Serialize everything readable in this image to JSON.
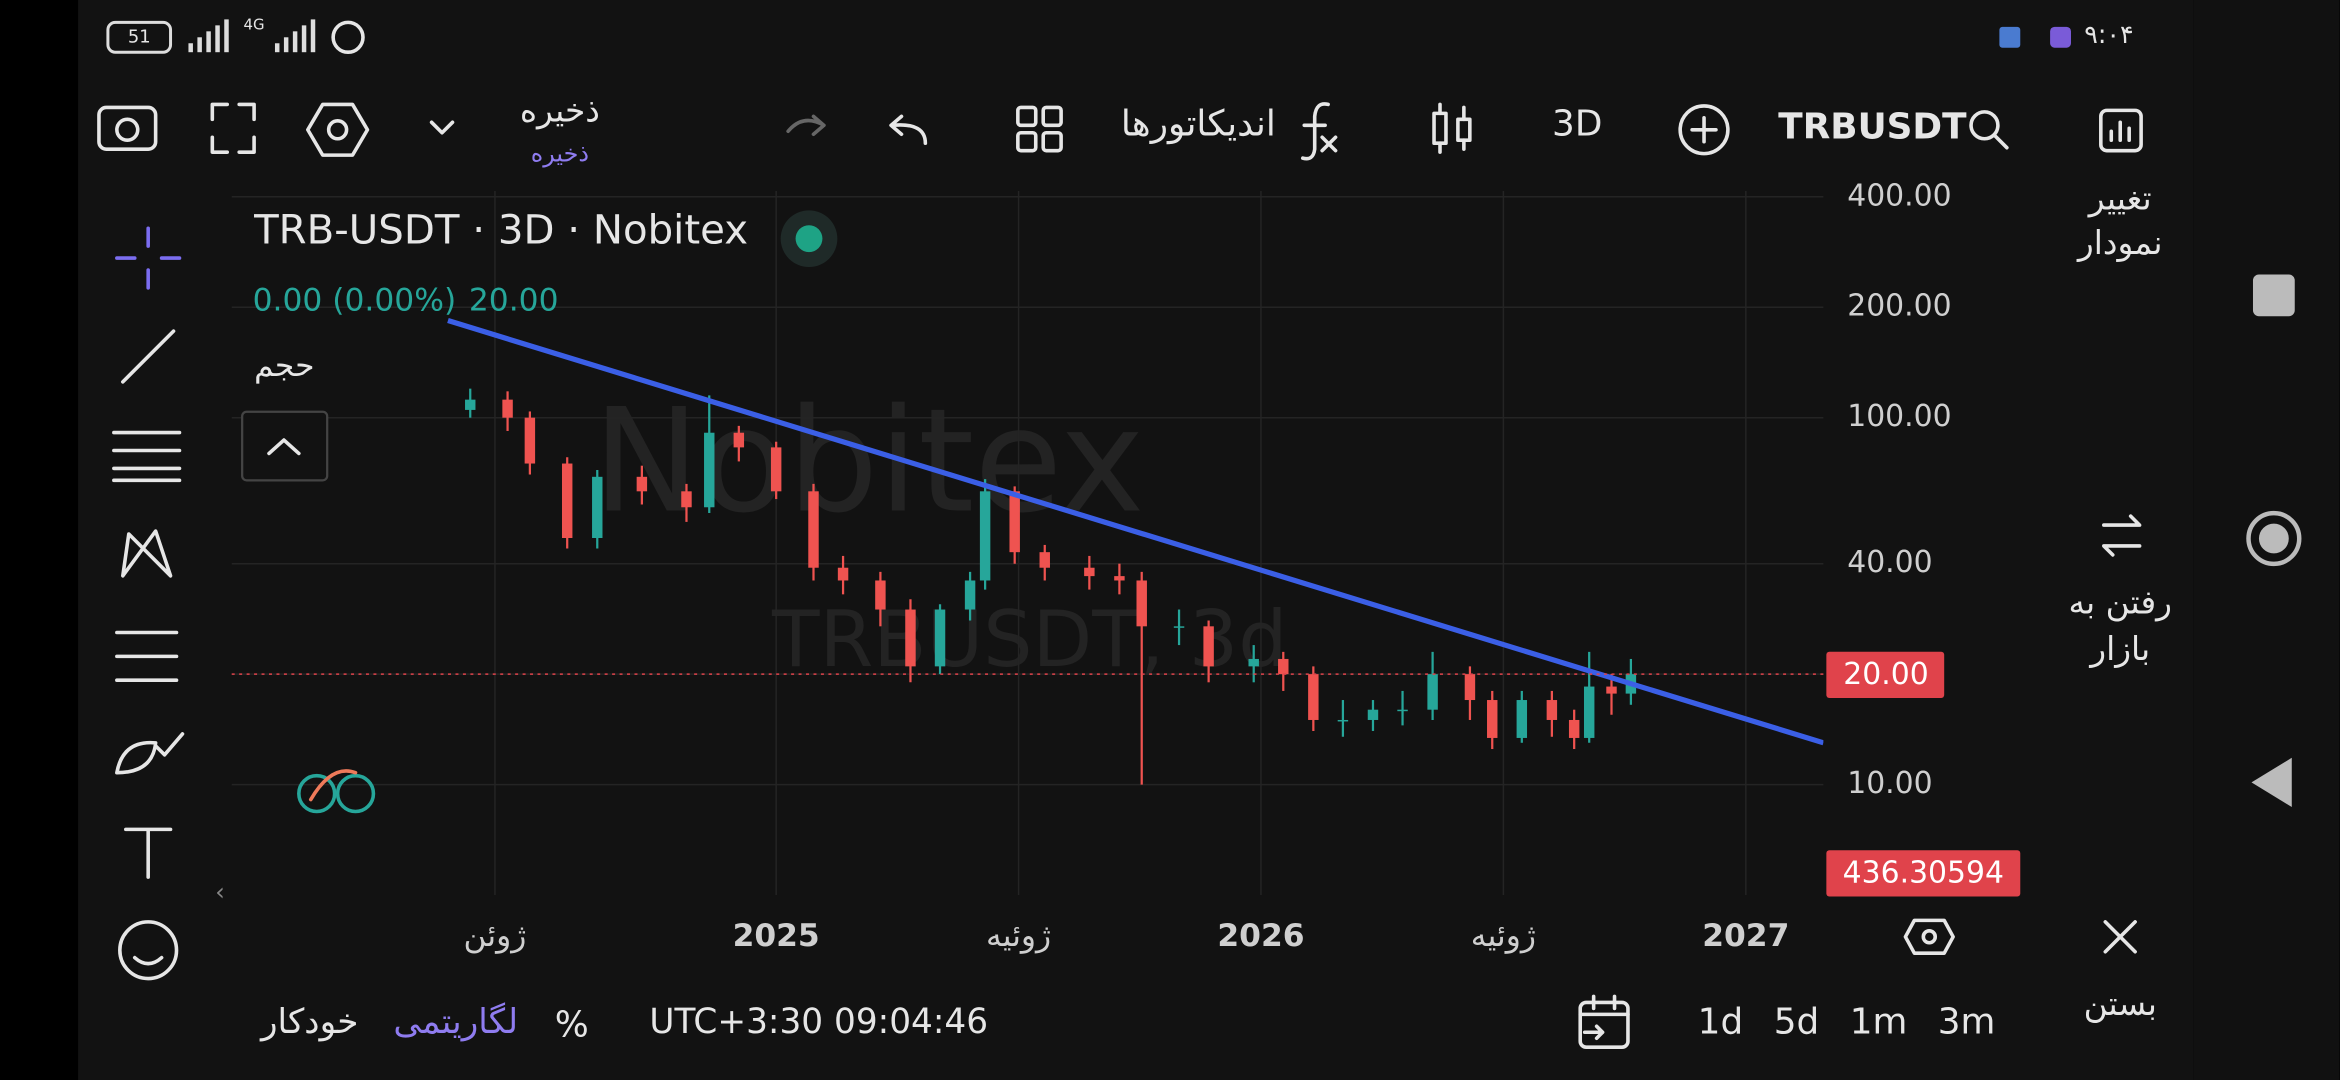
{
  "status_bar": {
    "battery": "51",
    "network": "4G",
    "time": "۹:۰۴"
  },
  "toolbar": {
    "save": "ذخیره",
    "save_sub": "ذخیره",
    "indicators": "اندیکاتورها",
    "interval": "3D",
    "symbol": "TRBUSDT"
  },
  "side_panel": {
    "change_chart": [
      "تغییر",
      "نمودار"
    ],
    "go_to_market": [
      "رفتن به",
      "بازار"
    ],
    "close": "بستن"
  },
  "legend": {
    "change": "0.00 (0.00%)",
    "price": "20.00",
    "volume": "حجم"
  },
  "watermark": {
    "brand": "Nobitex",
    "symbol": "TRBUSDT, 3d"
  },
  "volume_label": "436.30594",
  "bottom_bar": {
    "auto": "خودکار",
    "log": "لگاریتمی",
    "percent": "%",
    "clock": "UTC+3:30 09:04:46",
    "ranges": [
      "1d",
      "5d",
      "1m",
      "3m"
    ]
  },
  "chart_data": {
    "type": "candlestick",
    "title": "TRB-USDT · 3D · Nobitex",
    "log_scale": true,
    "grid": true,
    "up_color": "#26a69a",
    "down_color": "#ef5350",
    "xlim": [
      2023.877,
      2027.16
    ],
    "xticks": [
      {
        "value": 2024.42,
        "label": "ژوئن"
      },
      {
        "value": 2025,
        "label": "2025"
      },
      {
        "value": 2025.5,
        "label": "ژوئیه"
      },
      {
        "value": 2026,
        "label": "2026"
      },
      {
        "value": 2026.5,
        "label": "ژوئیه"
      },
      {
        "value": 2027,
        "label": "2027"
      }
    ],
    "ylim": [
      5,
      415
    ],
    "yticks": [
      {
        "value": 10,
        "label": "10.00"
      },
      {
        "value": 20,
        "label": "20.00"
      },
      {
        "value": 40,
        "label": "40.00"
      },
      {
        "value": 100,
        "label": "100.00"
      },
      {
        "value": 200,
        "label": "200.00"
      },
      {
        "value": 400,
        "label": "400.00"
      }
    ],
    "x": [
      2024.369,
      2024.446,
      2024.492,
      2024.569,
      2024.631,
      2024.723,
      2024.815,
      2024.862,
      2024.923,
      2025.0,
      2025.077,
      2025.138,
      2025.215,
      2025.277,
      2025.338,
      2025.4,
      2025.431,
      2025.492,
      2025.554,
      2025.646,
      2025.708,
      2025.754,
      2025.831,
      2025.892,
      2025.985,
      2026.046,
      2026.108,
      2026.169,
      2026.231,
      2026.292,
      2026.354,
      2026.431,
      2026.477,
      2026.538,
      2026.6,
      2026.646,
      2026.677,
      2026.723,
      2026.763
    ],
    "open": [
      105,
      112,
      100,
      75,
      47,
      69,
      63,
      57,
      91,
      83,
      63,
      39,
      36,
      30,
      21,
      30,
      36,
      63,
      43,
      39,
      37,
      36,
      27,
      27,
      21,
      22,
      20,
      15,
      15,
      16,
      16,
      20,
      17,
      13.4,
      17,
      15,
      13.4,
      18.5,
      17.7
    ],
    "high": [
      120,
      118,
      104,
      78,
      72,
      74,
      66,
      115,
      95,
      86,
      66,
      42,
      38,
      32,
      31,
      38,
      68,
      65,
      45,
      42,
      40,
      38,
      30,
      28,
      24,
      23,
      21,
      17,
      17,
      18,
      23,
      21,
      18,
      18,
      18,
      16,
      23,
      20,
      22
    ],
    "low": [
      100,
      92,
      70,
      44,
      44,
      58,
      52,
      55,
      76,
      60,
      36,
      33,
      27,
      19,
      20,
      28,
      34,
      40,
      36,
      34,
      33,
      10,
      24,
      19,
      19,
      18,
      14,
      13.5,
      14,
      14.5,
      15,
      15,
      12.5,
      13,
      13.5,
      12.5,
      13,
      15.5,
      16.5
    ],
    "close": [
      112,
      100,
      75,
      47,
      69,
      63,
      57,
      91,
      83,
      63,
      39,
      36,
      30,
      21,
      30,
      36,
      63,
      43,
      39,
      37,
      36,
      27,
      27,
      21,
      22,
      20,
      15,
      15,
      16,
      16,
      20,
      17,
      13.4,
      17,
      15,
      13.4,
      18.5,
      17.7,
      20
    ],
    "trend_line": {
      "color": "#3b5fe6",
      "x": [
        2024.323,
        2027.16
      ],
      "y": [
        184,
        13
      ]
    },
    "price_line": {
      "value": 20,
      "label": "20.00",
      "color": "#e0434b"
    }
  }
}
